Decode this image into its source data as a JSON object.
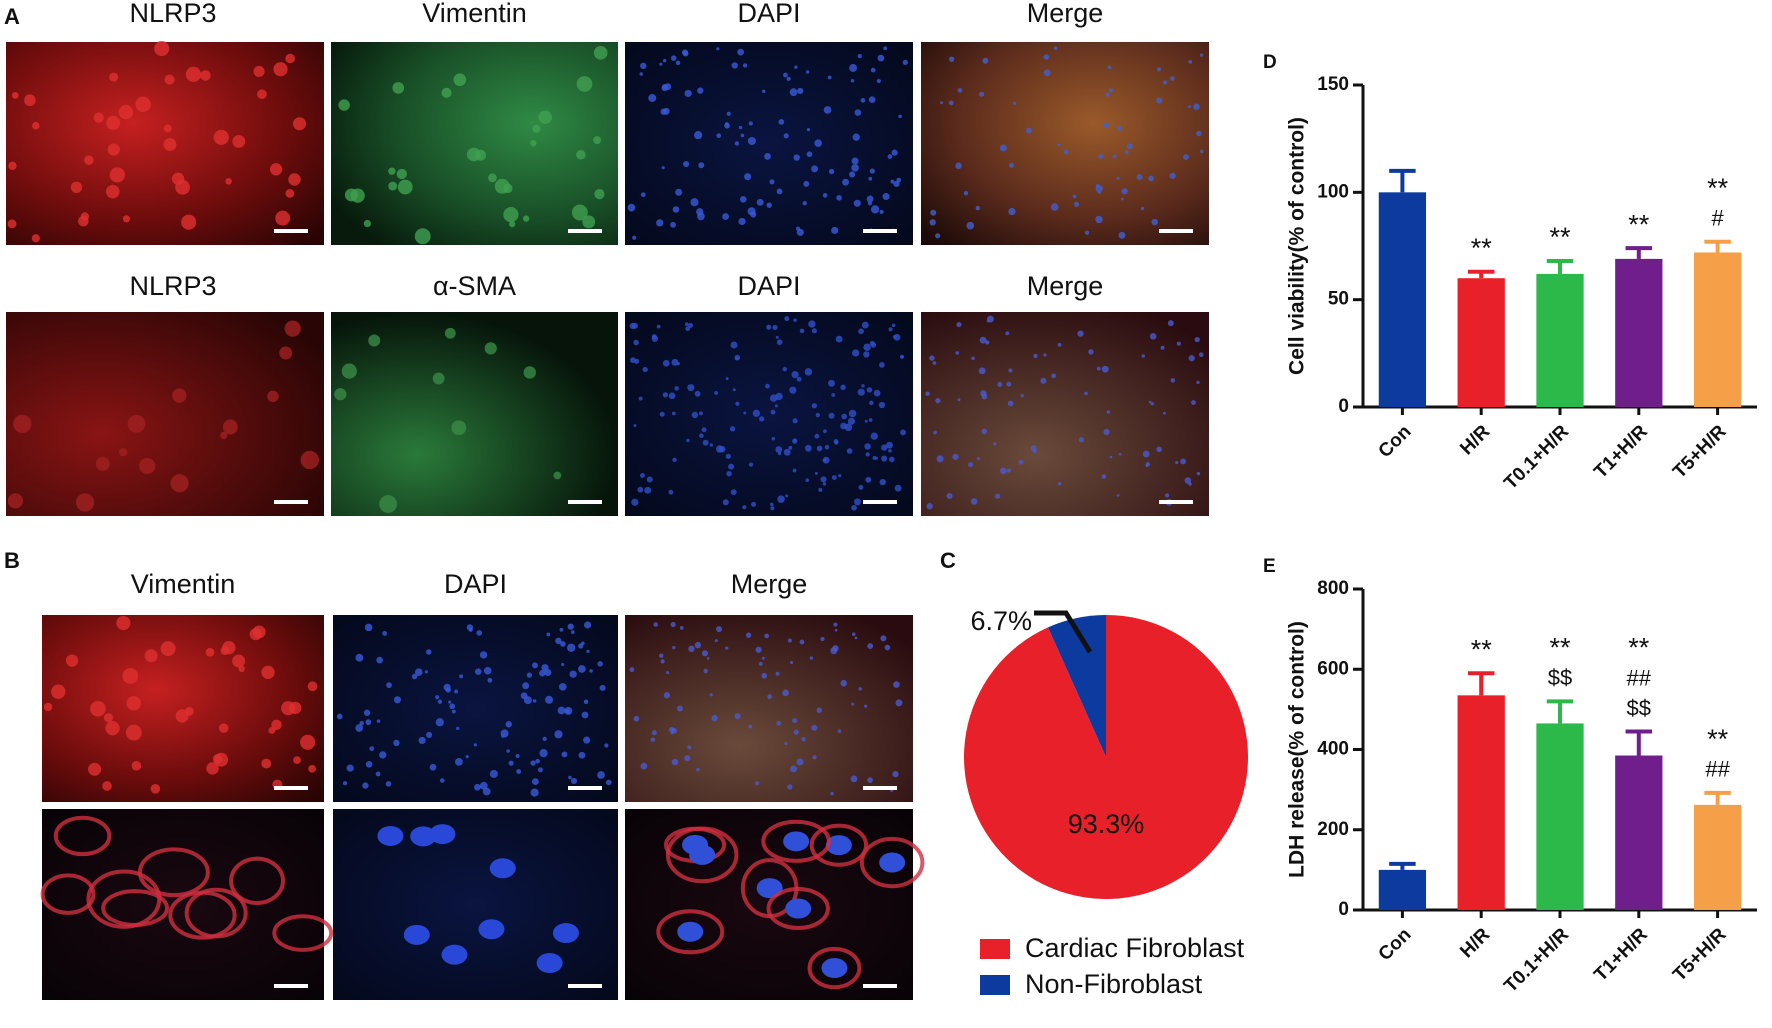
{
  "panels": {
    "A": {
      "letter": "A",
      "row1": [
        "NLRP3",
        "Vimentin",
        "DAPI",
        "Merge"
      ],
      "row2": [
        "NLRP3",
        "α-SMA",
        "DAPI",
        "Merge"
      ]
    },
    "B": {
      "letter": "B",
      "labels": [
        "Vimentin",
        "DAPI",
        "Merge"
      ]
    }
  },
  "chart_data": [
    {
      "type": "pie",
      "panel_label": "C",
      "categories": [
        "Cardiac Fibroblast",
        "Non-Fibroblast"
      ],
      "values": [
        93.3,
        6.7
      ],
      "value_labels": [
        "93.3%",
        "6.7%"
      ],
      "colors": [
        "#e8202a",
        "#0c3a9e"
      ]
    },
    {
      "type": "bar",
      "panel_label": "D",
      "y_label": "Cell viability(% of control)",
      "categories": [
        "Con",
        "H/R",
        "T0.1+H/R",
        "T1+H/R",
        "T5+H/R"
      ],
      "values": [
        100,
        60,
        62,
        69,
        72
      ],
      "errors": [
        10,
        3,
        6,
        5,
        5
      ],
      "colors": [
        "#0c3a9e",
        "#e8202a",
        "#2db84a",
        "#6f1e8c",
        "#f5a048"
      ],
      "ylim": [
        0,
        150
      ],
      "yticks": [
        0,
        50,
        100,
        150
      ],
      "annotations": [
        {
          "category": 1,
          "lines": [
            "**"
          ]
        },
        {
          "category": 2,
          "lines": [
            "**"
          ]
        },
        {
          "category": 3,
          "lines": [
            "**"
          ]
        },
        {
          "category": 4,
          "lines": [
            "**",
            "#"
          ]
        }
      ]
    },
    {
      "type": "bar",
      "panel_label": "E",
      "y_label": "LDH release(% of control)",
      "categories": [
        "Con",
        "H/R",
        "T0.1+H/R",
        "T1+H/R",
        "T5+H/R"
      ],
      "values": [
        100,
        535,
        465,
        385,
        262
      ],
      "errors": [
        15,
        55,
        55,
        60,
        30
      ],
      "colors": [
        "#0c3a9e",
        "#e8202a",
        "#2db84a",
        "#6f1e8c",
        "#f5a048"
      ],
      "ylim": [
        0,
        800
      ],
      "yticks": [
        0,
        200,
        400,
        600,
        800
      ],
      "annotations": [
        {
          "category": 1,
          "lines": [
            "**"
          ]
        },
        {
          "category": 2,
          "lines": [
            "**",
            "$$"
          ]
        },
        {
          "category": 3,
          "lines": [
            "**",
            "##",
            "$$"
          ]
        },
        {
          "category": 4,
          "lines": [
            "**",
            "##"
          ]
        }
      ]
    }
  ]
}
